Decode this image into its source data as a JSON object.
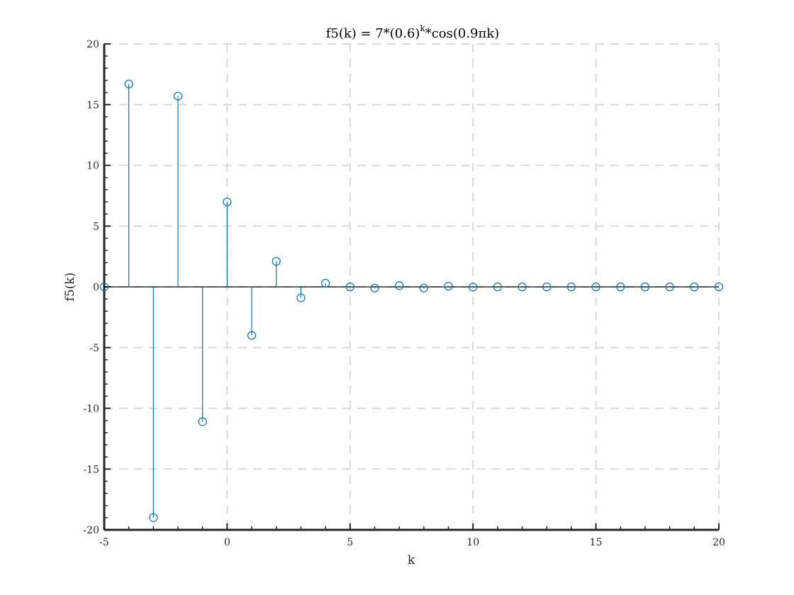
{
  "chart_data": {
    "type": "stem",
    "title": {
      "prefix": "f5(k) = 7*(0.6)",
      "superscript": "k",
      "suffix": "*cos(0.9πk)"
    },
    "xlabel": "k",
    "ylabel": "f5(k)",
    "xlim": [
      -5,
      20
    ],
    "ylim": [
      -20,
      20
    ],
    "xticks": [
      -5,
      0,
      5,
      10,
      15,
      20
    ],
    "xtick_labels": [
      "-5",
      "0",
      "5",
      "10",
      "15",
      "20"
    ],
    "yticks": [
      -20,
      -15,
      -10,
      -5,
      0,
      5,
      10,
      15,
      20
    ],
    "ytick_labels": [
      "-20",
      "-15",
      "-10",
      "-5",
      "0",
      "5",
      "10",
      "15",
      "20"
    ],
    "grid": true,
    "grid_style": "dashed",
    "minor_ticks": true,
    "colors": {
      "series": "#0072BD",
      "axis": "#262626",
      "grid": "#d9d9d9"
    },
    "series": [
      {
        "marker": "open-circle",
        "x": [
          -5,
          -4,
          -3,
          -2,
          -1,
          0,
          1,
          2,
          3,
          4,
          5,
          6,
          7,
          8,
          9,
          10,
          11,
          12,
          13,
          14,
          15,
          16,
          17,
          18,
          19,
          20
        ],
        "y": [
          0,
          16.7,
          -19.0,
          15.7,
          -11.1,
          7.0,
          -4.0,
          2.1,
          -0.9,
          0.3,
          0,
          -0.1,
          0.1,
          -0.1,
          0.05,
          -0.02,
          0,
          0,
          0,
          0,
          0,
          0,
          0,
          0,
          0,
          0
        ]
      }
    ]
  }
}
